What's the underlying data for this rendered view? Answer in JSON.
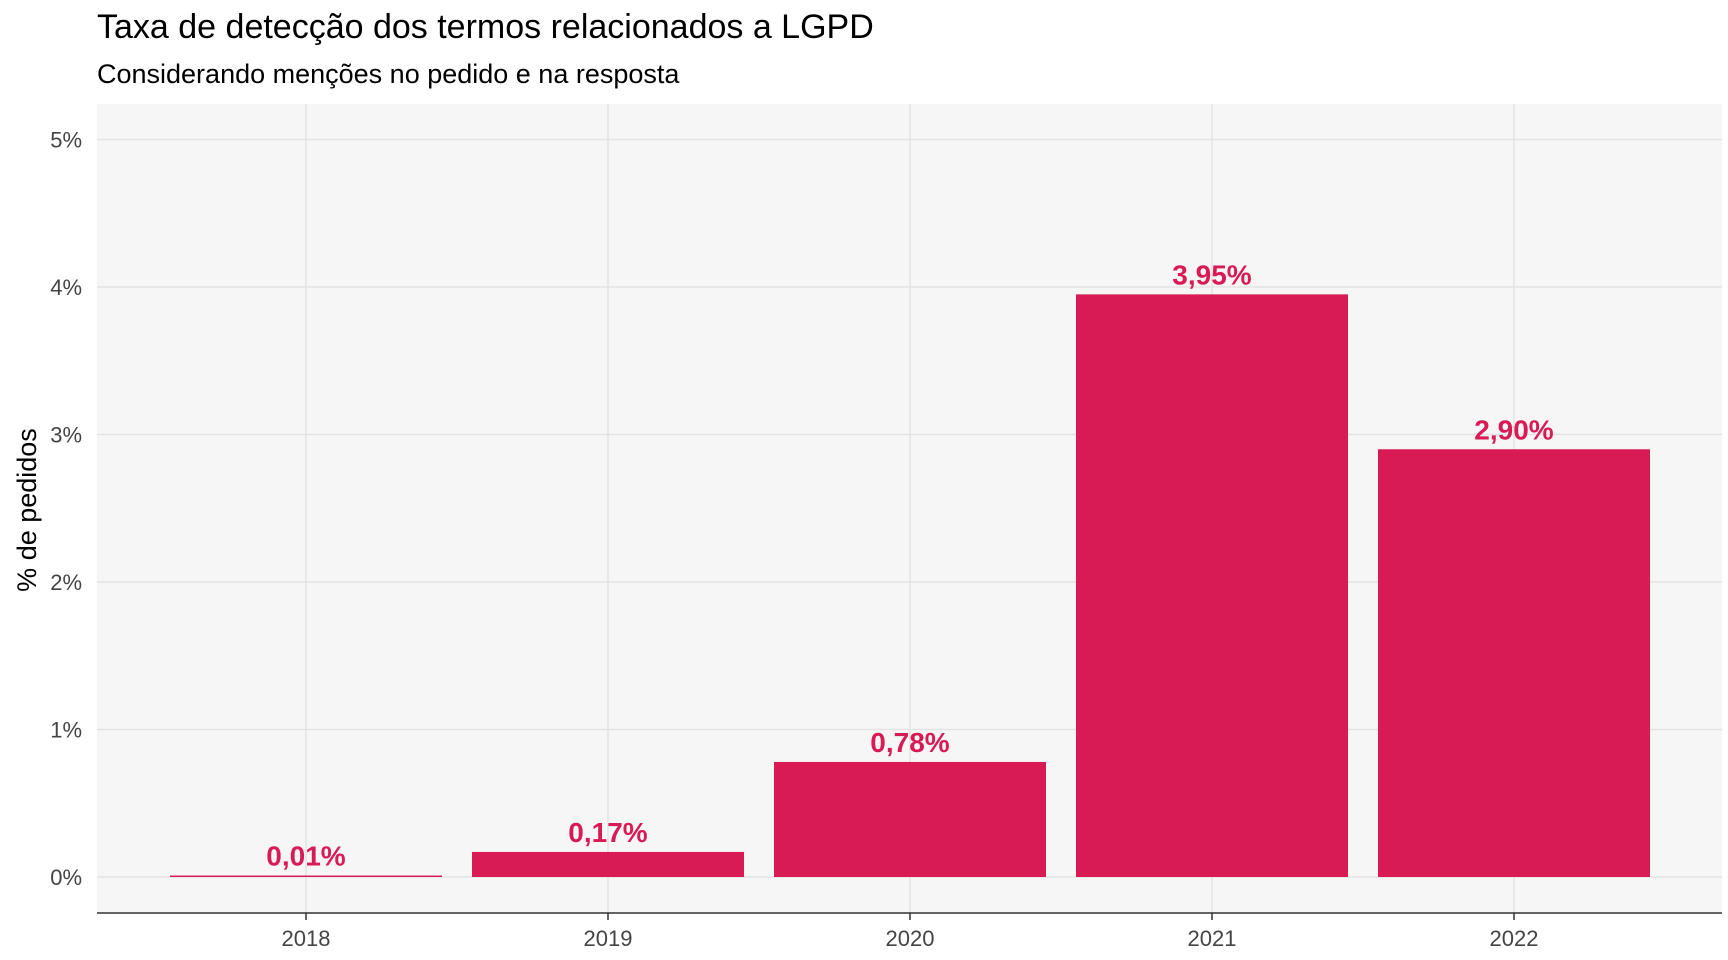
{
  "chart_data": {
    "type": "bar",
    "title": "Taxa de detecção dos termos relacionados a LGPD",
    "subtitle": "Considerando menções no pedido e na resposta",
    "xlabel": "",
    "ylabel": "% de pedidos",
    "categories": [
      "2018",
      "2019",
      "2020",
      "2021",
      "2022"
    ],
    "values": [
      0.01,
      0.17,
      0.78,
      3.95,
      2.9
    ],
    "value_labels": [
      "0,01%",
      "0,17%",
      "0,78%",
      "3,95%",
      "2,90%"
    ],
    "ylim": [
      0,
      5
    ],
    "yticks": [
      0,
      1,
      2,
      3,
      4,
      5
    ],
    "ytick_labels": [
      "0%",
      "1%",
      "2%",
      "3%",
      "4%",
      "5%"
    ],
    "grid": true,
    "legend": "none",
    "bar_color": "#D81B55",
    "label_color": "#D81B55",
    "panel_background": "#F6F6F6",
    "grid_color": "#E3E3E3"
  }
}
